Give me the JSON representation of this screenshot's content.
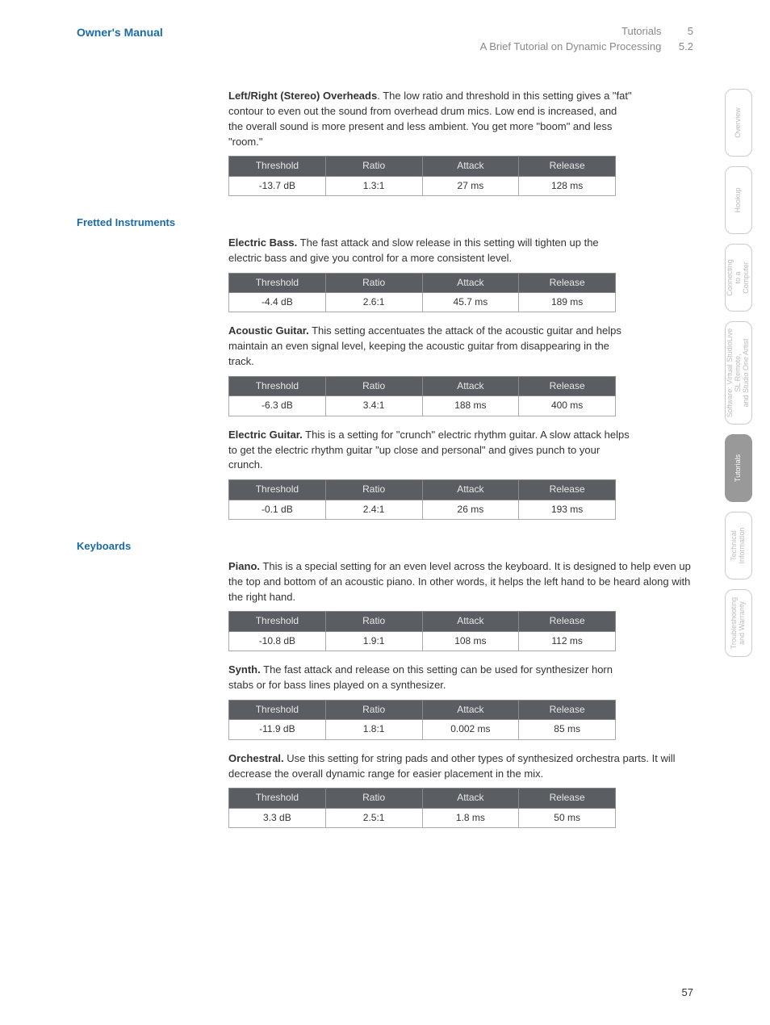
{
  "header": {
    "manual_title": "Owner's Manual",
    "chapter": "Tutorials",
    "chapter_num": "5",
    "section": "A Brief Tutorial on Dynamic Processing",
    "section_num": "5.2"
  },
  "page_number": "57",
  "tabs": [
    {
      "label": "Overview",
      "active": false,
      "tall": false
    },
    {
      "label": "Hookup",
      "active": false,
      "tall": false
    },
    {
      "label": "Connecting\nto a\nComputer",
      "active": false,
      "tall": false
    },
    {
      "label": "Software: Virtual StudioLive\nSL Remote,\nand Studio One Artist",
      "active": false,
      "tall": true
    },
    {
      "label": "Tutorials",
      "active": true,
      "tall": false
    },
    {
      "label": "Technical\nInformation",
      "active": false,
      "tall": false
    },
    {
      "label": "Troubleshooting\nand Warranty",
      "active": false,
      "tall": false
    }
  ],
  "columns": [
    "Threshold",
    "Ratio",
    "Attack",
    "Release"
  ],
  "groups": [
    {
      "heading": null,
      "entries": [
        {
          "lead": "Left/Right (Stereo) Overheads",
          "lead_sep": ". ",
          "text": "The low ratio and threshold in this setting gives a \"fat\" contour to even out the sound from overhead drum mics. Low end is increased, and the overall sound is more present and less ambient. You get more \"boom\" and less \"room.\"",
          "wide": false,
          "row": [
            "-13.7 dB",
            "1.3:1",
            "27 ms",
            "128 ms"
          ]
        }
      ]
    },
    {
      "heading": "Fretted Instruments",
      "entries": [
        {
          "lead": "Electric Bass.",
          "lead_sep": " ",
          "text": "The fast attack and slow release in this setting will tighten up the electric bass and give you control for a more consistent level.",
          "wide": false,
          "row": [
            "-4.4 dB",
            "2.6:1",
            "45.7 ms",
            "189 ms"
          ]
        },
        {
          "lead": "Acoustic Guitar.",
          "lead_sep": " ",
          "text": "This setting accentuates the attack of the acoustic guitar and helps maintain an even signal level, keeping the acoustic guitar from disappearing in the track.",
          "wide": false,
          "row": [
            "-6.3 dB",
            "3.4:1",
            "188 ms",
            "400 ms"
          ]
        },
        {
          "lead": "Electric Guitar.",
          "lead_sep": " ",
          "text": "This is a setting for \"crunch\" electric rhythm guitar. A slow attack helps to get the electric rhythm guitar \"up close and personal\" and gives punch to your crunch.",
          "wide": false,
          "row": [
            "-0.1 dB",
            "2.4:1",
            "26 ms",
            "193 ms"
          ]
        }
      ]
    },
    {
      "heading": "Keyboards",
      "entries": [
        {
          "lead": "Piano.",
          "lead_sep": " ",
          "text": "This is a special setting for an even level across the keyboard. It is designed to help even up the top and bottom of an acoustic piano. In other words, it helps the left hand to be heard along with the right hand.",
          "wide": true,
          "row": [
            "-10.8 dB",
            "1.9:1",
            "108 ms",
            "112 ms"
          ]
        },
        {
          "lead": "Synth.",
          "lead_sep": " ",
          "text": "The fast attack and release on this setting can be used for synthesizer horn stabs or for bass lines played on a synthesizer.",
          "wide": false,
          "row": [
            "-11.9 dB",
            "1.8:1",
            "0.002 ms",
            "85 ms"
          ]
        },
        {
          "lead": "Orchestral.",
          "lead_sep": " ",
          "text": "Use this setting for string pads and other types of synthesized orchestra parts. It will decrease the overall dynamic range for easier placement in the mix.",
          "wide": true,
          "row": [
            "3.3 dB",
            "2.5:1",
            "1.8 ms",
            "50 ms"
          ]
        }
      ]
    }
  ]
}
